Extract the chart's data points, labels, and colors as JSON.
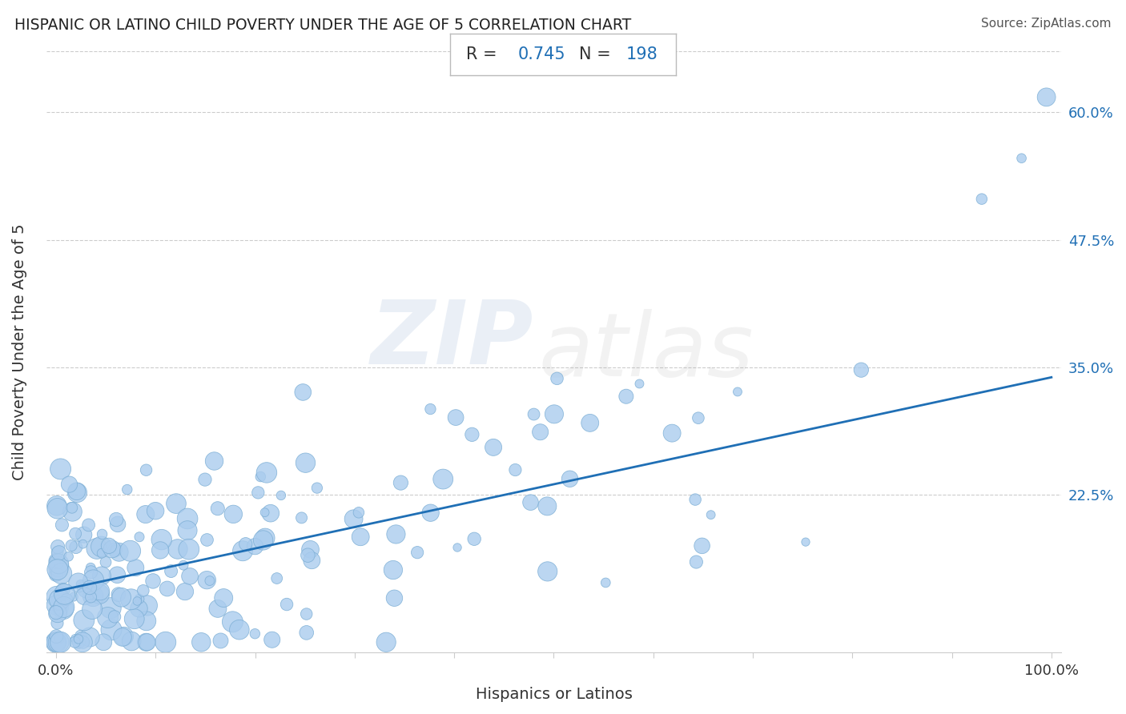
{
  "title": "HISPANIC OR LATINO CHILD POVERTY UNDER THE AGE OF 5 CORRELATION CHART",
  "source": "Source: ZipAtlas.com",
  "xlabel": "Hispanics or Latinos",
  "ylabel": "Child Poverty Under the Age of 5",
  "R": 0.745,
  "N": 198,
  "xlim": [
    -0.01,
    1.01
  ],
  "ylim": [
    0.07,
    0.66
  ],
  "xtick_positions": [
    0.0,
    0.1,
    0.2,
    0.3,
    0.4,
    0.5,
    0.6,
    0.7,
    0.8,
    0.9,
    1.0
  ],
  "xticklabels": [
    "0.0%",
    "",
    "",
    "",
    "",
    "",
    "",
    "",
    "",
    "",
    "100.0%"
  ],
  "ytick_positions": [
    0.225,
    0.35,
    0.475,
    0.6
  ],
  "ytick_labels": [
    "22.5%",
    "35.0%",
    "47.5%",
    "60.0%"
  ],
  "regression_color": "#1f6fb5",
  "scatter_color": "#aaccee",
  "scatter_edge_color": "#7aadd4",
  "title_color": "#222222",
  "watermark_ZIP_color": "#5580bb",
  "watermark_atlas_color": "#999999",
  "background_color": "#ffffff",
  "grid_color": "#cccccc",
  "annotation_text_color": "#333333",
  "annotation_value_color": "#1f6fb5",
  "source_color": "#555555",
  "regression_intercept": 0.13,
  "regression_slope": 0.21
}
